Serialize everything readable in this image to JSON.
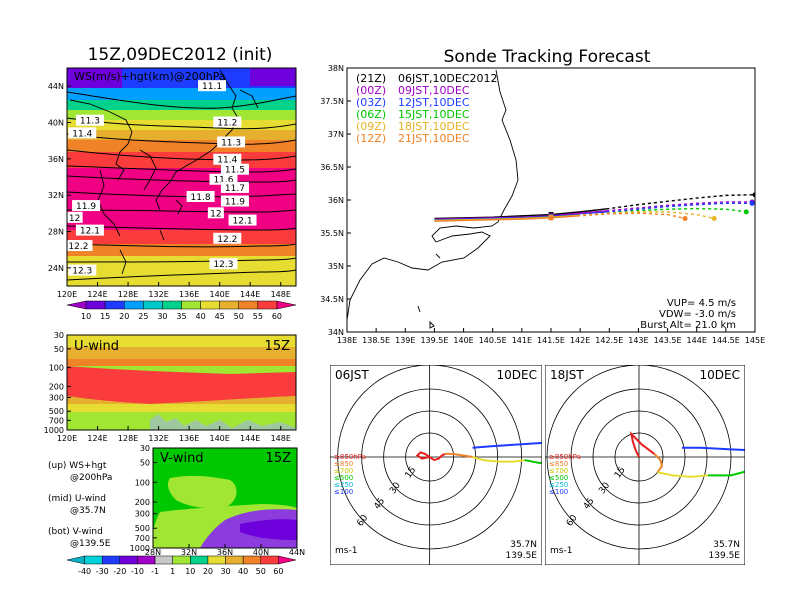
{
  "left_panel": {
    "title": "15Z,09DEC2012 (init)",
    "map_label": "WS(m/s)+hgt(km)@200hPa",
    "lat_ticks": [
      "44N",
      "40N",
      "36N",
      "32N",
      "28N",
      "24N"
    ],
    "lon_ticks": [
      "120E",
      "124E",
      "128E",
      "132E",
      "136E",
      "140E",
      "144E",
      "148E"
    ],
    "height_labels": [
      {
        "text": "11.1",
        "lon": 139.0,
        "lat": 44.0
      },
      {
        "text": "11.3",
        "lon": 123.0,
        "lat": 40.2
      },
      {
        "text": "11.4",
        "lon": 122.0,
        "lat": 38.8
      },
      {
        "text": "11.2",
        "lon": 141.0,
        "lat": 40.0
      },
      {
        "text": "11.3",
        "lon": 141.5,
        "lat": 37.8
      },
      {
        "text": "11.4",
        "lon": 141.0,
        "lat": 35.9
      },
      {
        "text": "11.5",
        "lon": 142.0,
        "lat": 34.8
      },
      {
        "text": "11.6",
        "lon": 140.5,
        "lat": 33.7
      },
      {
        "text": "11.7",
        "lon": 142.0,
        "lat": 32.8
      },
      {
        "text": "11.8",
        "lon": 137.5,
        "lat": 31.8
      },
      {
        "text": "11.9",
        "lon": 142.0,
        "lat": 31.3
      },
      {
        "text": "11.9",
        "lon": 122.5,
        "lat": 30.8
      },
      {
        "text": "12",
        "lon": 121.0,
        "lat": 29.5
      },
      {
        "text": "12",
        "lon": 139.5,
        "lat": 30.0
      },
      {
        "text": "12.1",
        "lon": 143.0,
        "lat": 29.2
      },
      {
        "text": "12.1",
        "lon": 123.0,
        "lat": 28.1
      },
      {
        "text": "12.2",
        "lon": 121.5,
        "lat": 26.4
      },
      {
        "text": "12.2",
        "lon": 141.0,
        "lat": 27.2
      },
      {
        "text": "12.3",
        "lon": 140.5,
        "lat": 24.4
      },
      {
        "text": "12.3",
        "lon": 122.0,
        "lat": 23.7
      }
    ],
    "ws_colorbar": {
      "labels": [
        "10",
        "15",
        "20",
        "25",
        "30",
        "35",
        "40",
        "45",
        "50",
        "55",
        "60"
      ],
      "colors": [
        "#a000c8",
        "#6e00dc",
        "#1e3cff",
        "#00a0ff",
        "#00c8c8",
        "#00d28c",
        "#a0e632",
        "#e6dc32",
        "#e6af2d",
        "#f08228",
        "#fa3c3c",
        "#f00082"
      ]
    },
    "u_wind": {
      "title": "U-wind",
      "time": "15Z",
      "p_ticks": [
        "30",
        "50",
        "100",
        "200",
        "300",
        "500",
        "700",
        "1000"
      ],
      "lon_ticks": [
        "120E",
        "124E",
        "128E",
        "132E",
        "136E",
        "140E",
        "144E",
        "148E"
      ]
    },
    "v_wind": {
      "title": "V-wind",
      "time": "15Z",
      "p_ticks": [
        "30",
        "50",
        "100",
        "200",
        "300",
        "500",
        "700",
        "1000"
      ],
      "lat_ticks": [
        "28N",
        "32N",
        "36N",
        "40N",
        "44N"
      ]
    },
    "legend_notes": [
      [
        "(up) WS+hgt",
        "@200hPa"
      ],
      [
        "(mid) U-wind",
        "@35.7N"
      ],
      [
        "(bot) V-wind",
        "@139.5E"
      ]
    ],
    "wind_colorbar": {
      "labels": [
        "-40",
        "-30",
        "-20",
        "-10",
        "-1",
        "1",
        "10",
        "20",
        "30",
        "40",
        "50",
        "60"
      ],
      "colors": [
        "#00b4c8",
        "#00d2dc",
        "#1e3cff",
        "#6e00dc",
        "#a000c8",
        "#c8c8c8",
        "#a0e632",
        "#00d28c",
        "#e6dc32",
        "#e6af2d",
        "#f08228",
        "#fa3c3c",
        "#f00082"
      ]
    }
  },
  "tracking": {
    "title": "Sonde Tracking Forecast",
    "lat_ticks": [
      "38N",
      "37.5N",
      "37N",
      "36.5N",
      "36N",
      "35.5N",
      "35N",
      "34.5N",
      "34N"
    ],
    "lon_ticks": [
      "138E",
      "138.5E",
      "139E",
      "139.5E",
      "140E",
      "140.5E",
      "141E",
      "141.5E",
      "142E",
      "142.5E",
      "143E",
      "143.5E",
      "144E",
      "144.5E",
      "145E"
    ],
    "launches": [
      {
        "code": "(21Z)",
        "local": "06JST,10DEC2012",
        "color": "#000000"
      },
      {
        "code": "(00Z)",
        "local": "09JST,10DEC",
        "color": "#a000c8"
      },
      {
        "code": "(03Z)",
        "local": "12JST,10DEC",
        "color": "#1e3cff"
      },
      {
        "code": "(06Z)",
        "local": "15JST,10DEC",
        "color": "#00c800"
      },
      {
        "code": "(09Z)",
        "local": "18JST,10DEC",
        "color": "#e6b428"
      },
      {
        "code": "(12Z)",
        "local": "21JST,10DEC",
        "color": "#f08228"
      }
    ],
    "params": [
      "VUP=  4.5 m/s",
      "VDW= -3.0 m/s",
      "Burst Alt= 21.0 km"
    ]
  },
  "chart_data": [
    {
      "type": "line",
      "title": "Sonde Tracking Forecast",
      "xlim": [
        138,
        145
      ],
      "ylim": [
        34,
        38
      ],
      "series": [
        {
          "name": "06JST,10DEC2012",
          "x": [
            139.5,
            140.0,
            140.5,
            141.0,
            141.5,
            142.0,
            142.5,
            143.0,
            143.5,
            144.0,
            144.5,
            145.0
          ],
          "y": [
            35.72,
            35.73,
            35.74,
            35.76,
            35.78,
            35.82,
            35.87,
            35.93,
            35.98,
            36.03,
            36.07,
            36.08
          ]
        },
        {
          "name": "09JST,10DEC",
          "x": [
            139.5,
            140.0,
            140.5,
            141.0,
            141.5,
            142.0,
            142.5,
            143.0,
            143.5,
            144.0,
            144.5,
            144.95
          ],
          "y": [
            35.71,
            35.72,
            35.73,
            35.74,
            35.76,
            35.8,
            35.84,
            35.88,
            35.92,
            35.95,
            35.97,
            35.97
          ]
        },
        {
          "name": "12JST,10DEC",
          "x": [
            139.5,
            140.0,
            140.5,
            141.0,
            141.5,
            142.0,
            142.5,
            143.0,
            143.5,
            144.0,
            144.5,
            144.95
          ],
          "y": [
            35.7,
            35.71,
            35.72,
            35.73,
            35.75,
            35.78,
            35.82,
            35.86,
            35.9,
            35.93,
            35.95,
            35.95
          ]
        },
        {
          "name": "15JST,10DEC",
          "x": [
            139.5,
            140.0,
            140.5,
            141.0,
            141.5,
            142.0,
            142.5,
            143.0,
            143.5,
            144.0,
            144.5,
            144.85
          ],
          "y": [
            35.69,
            35.7,
            35.71,
            35.72,
            35.74,
            35.77,
            35.8,
            35.84,
            35.86,
            35.87,
            35.86,
            35.82
          ]
        },
        {
          "name": "18JST,10DEC",
          "x": [
            139.5,
            140.0,
            140.5,
            141.0,
            141.5,
            142.0,
            142.5,
            143.0,
            143.5,
            144.0,
            144.3
          ],
          "y": [
            35.69,
            35.7,
            35.71,
            35.72,
            35.74,
            35.77,
            35.8,
            35.82,
            35.82,
            35.78,
            35.72
          ]
        },
        {
          "name": "21JST,10DEC",
          "x": [
            139.5,
            140.0,
            140.5,
            141.0,
            141.5,
            142.0,
            142.5,
            143.0,
            143.5,
            143.8
          ],
          "y": [
            35.68,
            35.69,
            35.7,
            35.71,
            35.73,
            35.76,
            35.79,
            35.8,
            35.78,
            35.72
          ]
        }
      ]
    },
    {
      "type": "line",
      "title": "06JST 10DEC",
      "location": [
        "35.7N",
        "139.5E"
      ],
      "unit": "ms-1",
      "ring_labels": [
        "15",
        "30",
        "45",
        "60"
      ],
      "level_legend": [
        {
          "text": "≥850hPa",
          "color": "#e61e1e"
        },
        {
          "text": "≤850",
          "color": "#f08228"
        },
        {
          "text": "≤700",
          "color": "#c8c800"
        },
        {
          "text": "≤500",
          "color": "#00c800"
        },
        {
          "text": "≤250",
          "color": "#00b4dc"
        },
        {
          "text": "≤100",
          "color": "#1e3cff"
        }
      ],
      "series": [
        {
          "name": "≥850hPa",
          "color": "#e61e1e",
          "u": [
            0,
            -3,
            -6,
            -8,
            -5,
            0,
            3,
            6,
            8,
            10
          ],
          "v": [
            0,
            2,
            3,
            1,
            -1,
            0,
            -2,
            -1,
            1,
            2
          ]
        },
        {
          "name": "≤850",
          "color": "#f08228",
          "u": [
            10,
            15,
            22,
            28
          ],
          "v": [
            2,
            2,
            1,
            0
          ]
        },
        {
          "name": "≤500",
          "color": "#e6dc32",
          "u": [
            28,
            35,
            45,
            55,
            62
          ],
          "v": [
            0,
            -2,
            -3,
            -3,
            -2
          ]
        },
        {
          "name": "≤250",
          "color": "#00c800",
          "u": [
            62,
            72,
            82,
            90,
            92
          ],
          "v": [
            -2,
            -4,
            0,
            8,
            10
          ]
        },
        {
          "name": "≤100",
          "color": "#00b4dc",
          "u": [
            92,
            96,
            100
          ],
          "v": [
            10,
            12,
            12
          ]
        },
        {
          "name": "≤100",
          "color": "#1e3cff",
          "u": [
            100,
            85,
            70,
            55,
            40,
            28
          ],
          "v": [
            12,
            10,
            9,
            8,
            7,
            6
          ]
        }
      ]
    },
    {
      "type": "line",
      "title": "18JST 10DEC",
      "location": [
        "35.7N",
        "139.5E"
      ],
      "unit": "ms-1",
      "ring_labels": [
        "15",
        "30",
        "45",
        "60"
      ],
      "level_legend": [
        {
          "text": "≥850hPa",
          "color": "#e61e1e"
        },
        {
          "text": "≤850",
          "color": "#f08228"
        },
        {
          "text": "≤700",
          "color": "#c8c800"
        },
        {
          "text": "≤500",
          "color": "#00c800"
        },
        {
          "text": "≤250",
          "color": "#00b4dc"
        },
        {
          "text": "≤100",
          "color": "#1e3cff"
        }
      ],
      "series": [
        {
          "name": "≥850hPa",
          "color": "#e61e1e",
          "u": [
            0,
            -2,
            -4,
            -5,
            -3,
            2,
            6,
            10
          ],
          "v": [
            0,
            4,
            10,
            15,
            13,
            8,
            5,
            2
          ]
        },
        {
          "name": "≤850",
          "color": "#f08228",
          "u": [
            10,
            14,
            15,
            12
          ],
          "v": [
            2,
            -2,
            -6,
            -10
          ]
        },
        {
          "name": "≤500",
          "color": "#e6dc32",
          "u": [
            12,
            22,
            34,
            45
          ],
          "v": [
            -10,
            -12,
            -13,
            -12
          ]
        },
        {
          "name": "≤250",
          "color": "#00c800",
          "u": [
            45,
            60,
            75,
            88
          ],
          "v": [
            -12,
            -12,
            -8,
            0
          ]
        },
        {
          "name": "≤100",
          "color": "#00b4dc",
          "u": [
            88,
            92,
            95
          ],
          "v": [
            0,
            2,
            2
          ]
        },
        {
          "name": "≤100",
          "color": "#1e3cff",
          "u": [
            95,
            80,
            60,
            40,
            28
          ],
          "v": [
            2,
            4,
            5,
            6,
            6
          ]
        }
      ]
    }
  ]
}
